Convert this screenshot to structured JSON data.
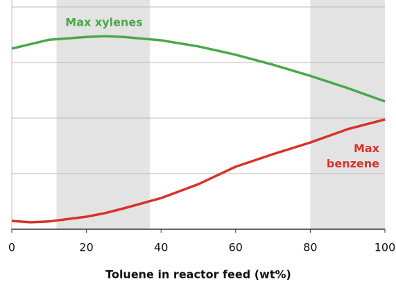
{
  "chart_data": {
    "type": "line",
    "x_label": "Toluene in reactor feed (wt%)",
    "x": [
      0,
      5,
      10,
      20,
      25,
      30,
      40,
      50,
      60,
      70,
      80,
      90,
      100
    ],
    "series": [
      {
        "name": "Max xylenes",
        "color": "#4aa84a",
        "values": [
          3.25,
          3.33,
          3.41,
          3.46,
          3.475,
          3.46,
          3.4,
          3.29,
          3.14,
          2.96,
          2.76,
          2.54,
          2.3
        ]
      },
      {
        "name": "Max benzene",
        "color": "#d9312b",
        "values": [
          0.15,
          0.125,
          0.14,
          0.225,
          0.29,
          0.375,
          0.56,
          0.81,
          1.125,
          1.35,
          1.56,
          1.8,
          1.975
        ]
      }
    ],
    "xlim": [
      0,
      100
    ],
    "xticks": [
      0,
      20,
      40,
      60,
      80,
      100
    ],
    "ylim": [
      0,
      4.125
    ],
    "yticks": [
      1,
      2,
      3,
      4
    ],
    "grid": true,
    "shaded_ranges": [
      [
        12,
        37
      ],
      [
        80,
        100
      ]
    ]
  }
}
